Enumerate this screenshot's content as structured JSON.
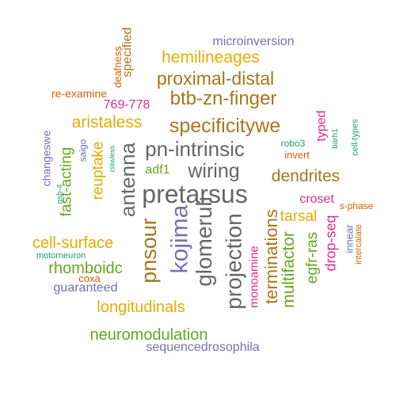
{
  "colors": {
    "green": "#66a61e",
    "orange": "#d95f02",
    "teal": "#1b9e77",
    "purple": "#7570b3",
    "magenta": "#e7298a",
    "gold": "#e6ab02",
    "brown": "#a6761d",
    "gray": "#666666"
  },
  "words": [
    {
      "text": "pretarsus",
      "color": "gray"
    },
    {
      "text": "pn-intrinsic",
      "color": "gray"
    },
    {
      "text": "glomeruli",
      "color": "gray"
    },
    {
      "text": "kojima",
      "color": "purple"
    },
    {
      "text": "wiring",
      "color": "gray"
    },
    {
      "text": "antenna",
      "color": "gray"
    },
    {
      "text": "projection",
      "color": "gray"
    },
    {
      "text": "specificitywe",
      "color": "brown"
    },
    {
      "text": "btb-zn-finger",
      "color": "brown"
    },
    {
      "text": "proximal-distal",
      "color": "brown"
    },
    {
      "text": "hemilineages",
      "color": "gold"
    },
    {
      "text": "aristaless",
      "color": "gold"
    },
    {
      "text": "dendrites",
      "color": "brown"
    },
    {
      "text": "pnsour",
      "color": "brown"
    },
    {
      "text": "terminations",
      "color": "brown"
    },
    {
      "text": "multifactor",
      "color": "green"
    },
    {
      "text": "cell-surface",
      "color": "gold"
    },
    {
      "text": "longitudinals",
      "color": "gold"
    },
    {
      "text": "neuromodulation",
      "color": "green"
    },
    {
      "text": "rhomboidc",
      "color": "green"
    },
    {
      "text": "tarsal",
      "color": "gold"
    },
    {
      "text": "reuptake",
      "color": "gold"
    },
    {
      "text": "fast-acting",
      "color": "green"
    },
    {
      "text": "egfr-ras",
      "color": "green"
    },
    {
      "text": "drop-seq",
      "color": "magenta"
    },
    {
      "text": "croset",
      "color": "magenta"
    },
    {
      "text": "monoamine",
      "color": "magenta"
    },
    {
      "text": "769-778",
      "color": "magenta"
    },
    {
      "text": "sequencedrosophila",
      "color": "purple"
    },
    {
      "text": "microinversion",
      "color": "purple"
    },
    {
      "text": "guaranteed",
      "color": "purple"
    },
    {
      "text": "adf1",
      "color": "green"
    },
    {
      "text": "specified",
      "color": "brown"
    },
    {
      "text": "typed",
      "color": "magenta"
    },
    {
      "text": "changeswe",
      "color": "purple"
    },
    {
      "text": "saigo",
      "color": "purple"
    },
    {
      "text": "deafness",
      "color": "orange"
    },
    {
      "text": "re-examine",
      "color": "orange"
    },
    {
      "text": "innear",
      "color": "purple"
    },
    {
      "text": "coxa",
      "color": "orange"
    },
    {
      "text": "invert",
      "color": "orange"
    },
    {
      "text": "s-phase",
      "color": "orange"
    },
    {
      "text": "intercalate",
      "color": "orange"
    },
    {
      "text": "robo3",
      "color": "teal"
    },
    {
      "text": "cell-types",
      "color": "teal"
    },
    {
      "text": "barh1",
      "color": "teal"
    },
    {
      "text": "gsh-4",
      "color": "teal"
    },
    {
      "text": "clawless",
      "color": "teal"
    },
    {
      "text": "motorneuron",
      "color": "teal"
    }
  ]
}
